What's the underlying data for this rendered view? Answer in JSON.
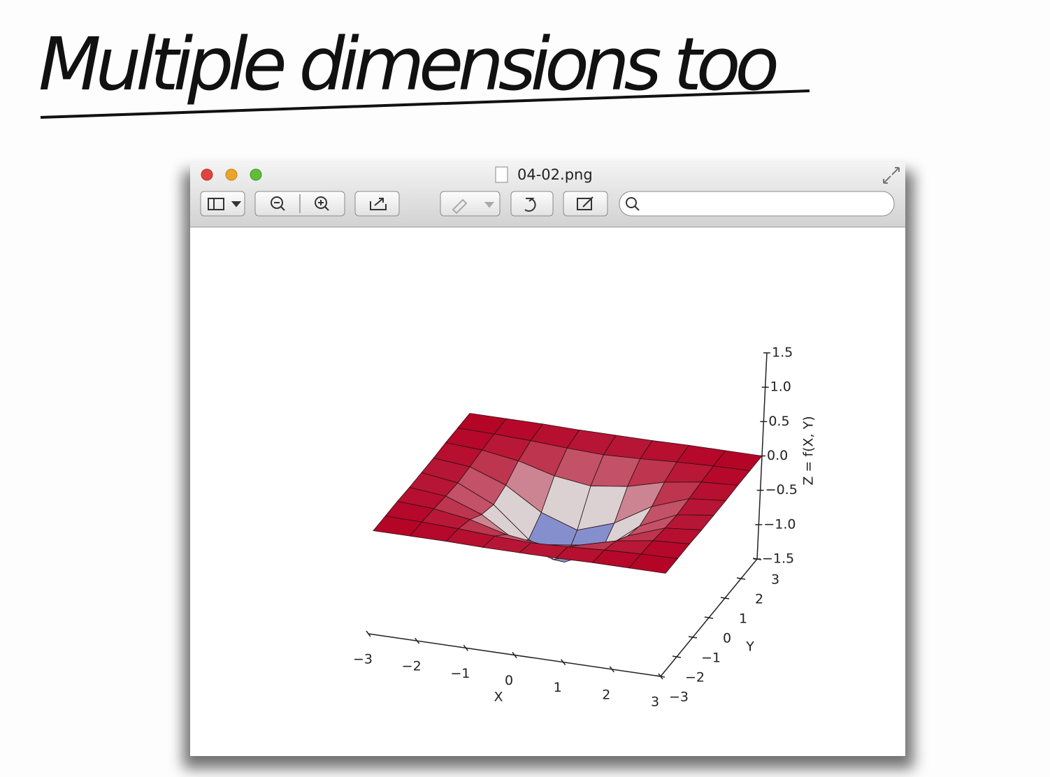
{
  "header": {
    "title": "Multiple dimensions too"
  },
  "window": {
    "title": "04-02.png"
  },
  "chart_data": {
    "type": "surface",
    "x": [
      -3,
      -2.25,
      -1.5,
      -0.75,
      0,
      0.75,
      1.5,
      2.25,
      3
    ],
    "y": [
      -3,
      -2.25,
      -1.5,
      -0.75,
      0,
      0.75,
      1.5,
      2.25,
      3
    ],
    "z": [
      [
        0,
        0,
        0,
        -0.01,
        -0.01,
        -0.01,
        0,
        0,
        0
      ],
      [
        0,
        -0.01,
        -0.03,
        -0.06,
        -0.08,
        -0.06,
        -0.03,
        -0.01,
        0
      ],
      [
        0,
        -0.03,
        -0.11,
        -0.25,
        -0.32,
        -0.25,
        -0.11,
        -0.03,
        0
      ],
      [
        -0.01,
        -0.06,
        -0.25,
        -0.57,
        -0.75,
        -0.57,
        -0.25,
        -0.06,
        -0.01
      ],
      [
        -0.01,
        -0.08,
        -0.32,
        -0.75,
        -1,
        -0.75,
        -0.32,
        -0.08,
        -0.01
      ],
      [
        -0.01,
        -0.06,
        -0.25,
        -0.57,
        -0.75,
        -0.57,
        -0.25,
        -0.06,
        -0.01
      ],
      [
        0,
        -0.03,
        -0.11,
        -0.25,
        -0.32,
        -0.25,
        -0.11,
        -0.03,
        0
      ],
      [
        0,
        -0.01,
        -0.03,
        -0.06,
        -0.08,
        -0.06,
        -0.03,
        -0.01,
        0
      ],
      [
        0,
        0,
        0,
        -0.01,
        -0.01,
        -0.01,
        0,
        0,
        0
      ]
    ],
    "xlabel": "X",
    "ylabel": "Y",
    "zlabel": "Z = f(X, Y)",
    "xlim": [
      -3,
      3
    ],
    "ylim": [
      -3,
      3
    ],
    "zlim": [
      -1.5,
      1.5
    ],
    "xticks": [
      {
        "value": -3,
        "label": "−3"
      },
      {
        "value": -2,
        "label": "−2"
      },
      {
        "value": -1,
        "label": "−1"
      },
      0,
      1,
      2,
      3
    ],
    "yticks": [
      {
        "value": -3,
        "label": "−3"
      },
      {
        "value": -2,
        "label": "−2"
      },
      {
        "value": -1,
        "label": "−1"
      },
      0,
      1,
      2,
      3
    ],
    "zticks": [
      {
        "value": -1.5,
        "label": "−1.5"
      },
      {
        "value": -1,
        "label": "−1.0"
      },
      {
        "value": -0.5,
        "label": "−0.5"
      },
      {
        "value": 0,
        "label": "0.0"
      },
      0.5,
      {
        "value": 1,
        "label": "1.0"
      },
      1.5
    ],
    "colormap": [
      "#3b4cc0",
      "#dddddd",
      "#b40426"
    ],
    "edge_color": "#2a1010"
  }
}
